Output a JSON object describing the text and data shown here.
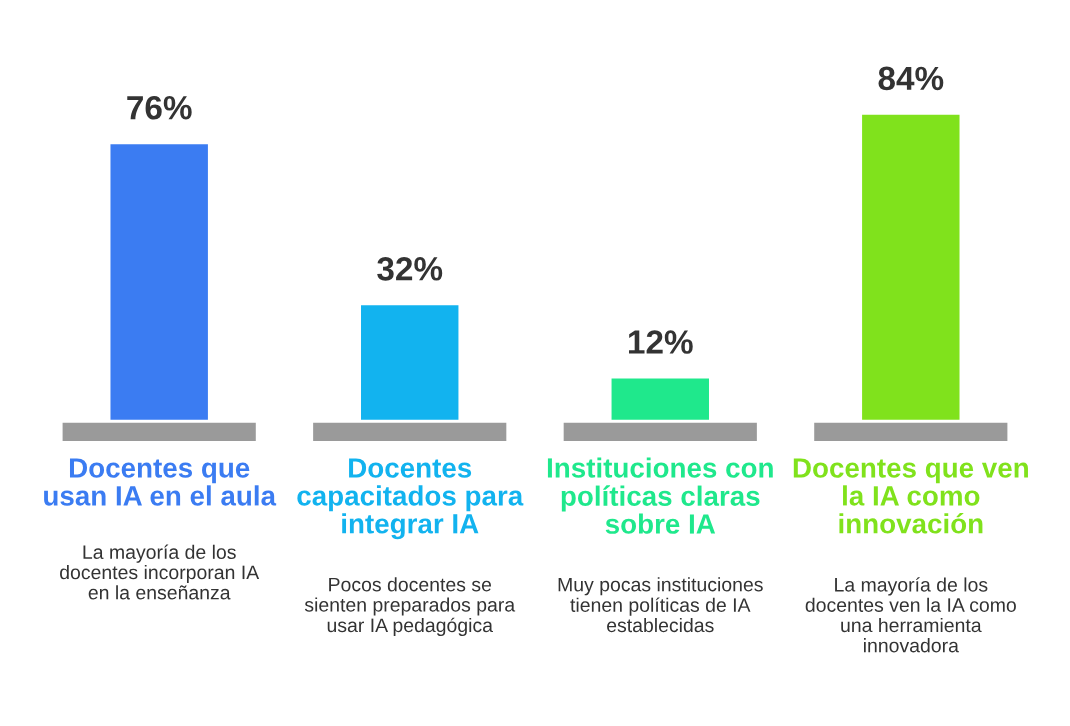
{
  "chart_data": {
    "type": "bar",
    "categories": [
      "Docentes que\nusan IA en el aula",
      "Docentes\ncapacitados para\nintegrar IA",
      "Instituciones con\npolíticas claras\nsobre IA",
      "Docentes que ven\nla IA como\ninnovación"
    ],
    "values": [
      76,
      32,
      12,
      84
    ],
    "colors": [
      "#3b7cf2",
      "#12b3ef",
      "#1fe88c",
      "#80e21c"
    ],
    "value_labels": [
      "76%",
      "32%",
      "12%",
      "84%"
    ],
    "annotations": [
      "La mayoría de los\ndocentes incorporan IA\nen la enseñanza",
      "Pocos docentes se\nsienten preparados para\nusar IA pedagógica",
      "Muy pocas instituciones\ntienen políticas de IA\nestablecidas",
      "La mayoría de los\ndocentes ven la IA como\nuna herramienta\ninnovadora"
    ]
  }
}
